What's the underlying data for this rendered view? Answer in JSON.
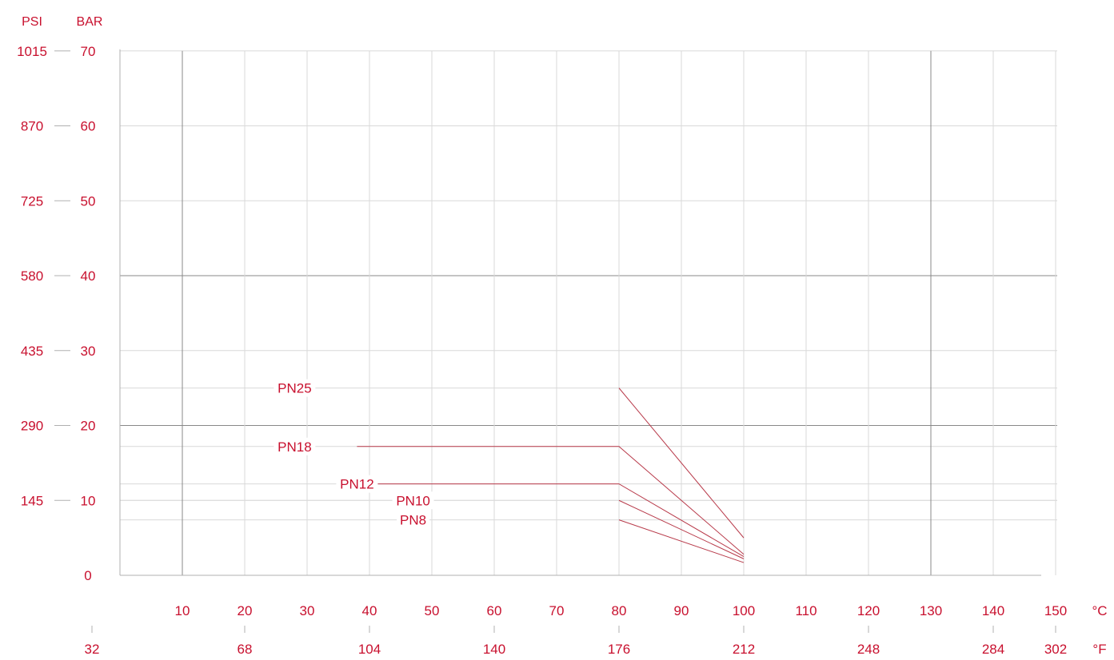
{
  "colors": {
    "text": "#c8102e",
    "series_line": "#b83a4a",
    "grid_major": "#888888",
    "grid_minor": "#d9d9d9",
    "axis": "#b0b0b0"
  },
  "chart_data": {
    "type": "line",
    "title": "",
    "left_axis_units": {
      "outer": "PSI",
      "inner": "BAR"
    },
    "bottom_axis_units": {
      "celsius": "°C",
      "fahrenheit": "°F"
    },
    "ylim": [
      0,
      70
    ],
    "xlim": [
      0,
      150
    ],
    "bar_ticks": [
      {
        "bar": 0,
        "bar_label": "0",
        "psi_label": ""
      },
      {
        "bar": 10,
        "bar_label": "10",
        "psi_label": "145"
      },
      {
        "bar": 20,
        "bar_label": "20",
        "psi_label": "290"
      },
      {
        "bar": 30,
        "bar_label": "30",
        "psi_label": "435"
      },
      {
        "bar": 40,
        "bar_label": "40",
        "psi_label": "580"
      },
      {
        "bar": 50,
        "bar_label": "50",
        "psi_label": "725"
      },
      {
        "bar": 60,
        "bar_label": "60",
        "psi_label": "870"
      },
      {
        "bar": 70,
        "bar_label": "70",
        "psi_label": "1015"
      }
    ],
    "celsius_ticks": [
      "10",
      "20",
      "30",
      "40",
      "50",
      "60",
      "70",
      "80",
      "90",
      "100",
      "110",
      "120",
      "130",
      "140",
      "150"
    ],
    "fahrenheit_ticks": [
      {
        "c": 0,
        "label": "32"
      },
      {
        "c": 20,
        "label": "68"
      },
      {
        "c": 40,
        "label": "104"
      },
      {
        "c": 60,
        "label": "140"
      },
      {
        "c": 80,
        "label": "176"
      },
      {
        "c": 100,
        "label": "212"
      },
      {
        "c": 120,
        "label": "248"
      },
      {
        "c": 140,
        "label": "284"
      },
      {
        "c": 150,
        "label": "302"
      }
    ],
    "series": [
      {
        "name": "PN25",
        "label_c": 28,
        "points": [
          [
            80,
            25
          ],
          [
            100,
            5
          ]
        ]
      },
      {
        "name": "PN18",
        "label_c": 28,
        "points": [
          [
            38,
            17.2
          ],
          [
            80,
            17.2
          ],
          [
            100,
            2.8
          ]
        ]
      },
      {
        "name": "PN12",
        "label_c": 38,
        "points": [
          [
            38,
            12.2
          ],
          [
            80,
            12.2
          ],
          [
            100,
            2.5
          ]
        ]
      },
      {
        "name": "PN10",
        "label_c": 47,
        "points": [
          [
            80,
            10
          ],
          [
            100,
            2.2
          ]
        ]
      },
      {
        "name": "PN8",
        "label_c": 47,
        "points": [
          [
            80,
            7.4
          ],
          [
            100,
            1.7
          ]
        ]
      }
    ],
    "minor_y_lines": [
      25,
      17.2,
      12.2,
      10,
      7.4
    ]
  }
}
